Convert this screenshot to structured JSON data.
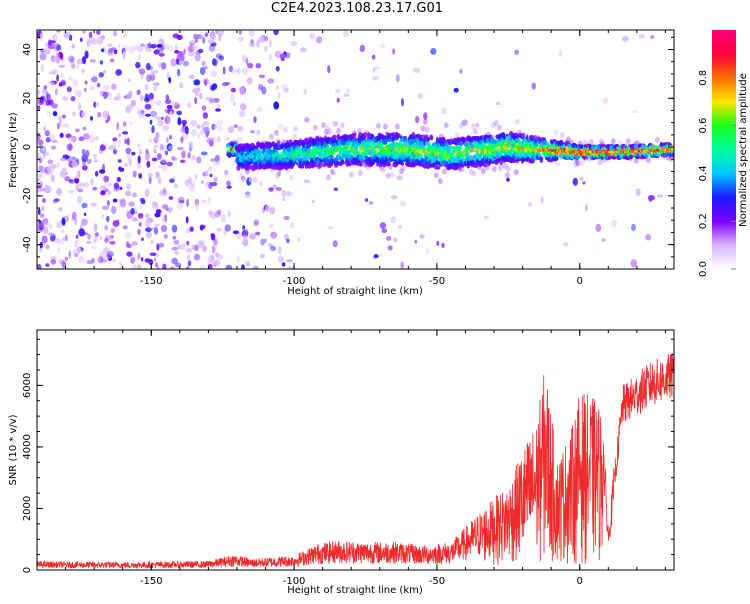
{
  "title": "C2E4.2023.108.23.17.G01",
  "colors": {
    "snr_line": "#ee2a2a",
    "spectrogram_main": "#7a10e8",
    "colormap": [
      "#ffffff",
      "#d9b3ff",
      "#7b00ff",
      "#1a1aff",
      "#00c8ff",
      "#00ff9a",
      "#19ff19",
      "#ffe600",
      "#ff6e00",
      "#ff003c",
      "#ff007f"
    ]
  },
  "chart_data": [
    {
      "type": "heatmap",
      "xlabel": "Height of straight line (km)",
      "ylabel": "Frequency (Hz)",
      "xlim": [
        -190,
        33
      ],
      "ylim": [
        -50,
        48
      ],
      "xticks": [
        -150,
        -100,
        -50,
        0
      ],
      "yticks": [
        -40,
        -20,
        0,
        20,
        40
      ],
      "colorbar": {
        "label": "Normalized spectral amplitude",
        "range": [
          0,
          1
        ],
        "ticks": [
          0.0,
          0.2,
          0.4,
          0.6,
          0.8
        ]
      },
      "features": {
        "noise_region_x": [
          -190,
          -100
        ],
        "signal_onset_x": -123,
        "signal_center_frequency": -2,
        "signal_track": [
          {
            "x": -120,
            "freq": -4,
            "width": 8,
            "amp": 0.25
          },
          {
            "x": -100,
            "freq": -3,
            "width": 9,
            "amp": 0.35
          },
          {
            "x": -80,
            "freq": -1,
            "width": 10,
            "amp": 0.4
          },
          {
            "x": -60,
            "freq": -1,
            "width": 11,
            "amp": 0.45
          },
          {
            "x": -45,
            "freq": -3,
            "width": 10,
            "amp": 0.45
          },
          {
            "x": -25,
            "freq": 0,
            "width": 10,
            "amp": 0.5
          },
          {
            "x": -15,
            "freq": -1,
            "width": 8,
            "amp": 0.5
          },
          {
            "x": 0,
            "freq": -2,
            "width": 4,
            "amp": 0.9
          },
          {
            "x": 15,
            "freq": -2,
            "width": 4,
            "amp": 0.9
          },
          {
            "x": 33,
            "freq": -1,
            "width": 4,
            "amp": 0.6
          }
        ]
      }
    },
    {
      "type": "line",
      "xlabel": "Height of straight line (km)",
      "ylabel": "SNR (10 * v/v)",
      "xlim": [
        -190,
        33
      ],
      "ylim": [
        0,
        7800
      ],
      "xticks": [
        -150,
        -100,
        -50,
        0
      ],
      "yticks": [
        0,
        2000,
        4000,
        6000
      ],
      "series": [
        {
          "x": [
            -190,
            -160,
            -130,
            -121,
            -115,
            -100,
            -92,
            -85,
            -75,
            -65,
            -55,
            -45,
            -38,
            -30,
            -25,
            -20,
            -15,
            -12,
            -8,
            -3,
            0,
            5,
            8,
            10,
            15,
            20,
            25,
            33
          ],
          "y": [
            250,
            230,
            260,
            450,
            320,
            420,
            750,
            850,
            800,
            820,
            700,
            800,
            1400,
            2100,
            2500,
            3600,
            4500,
            6300,
            3300,
            4200,
            5400,
            5200,
            4800,
            1200,
            6000,
            6400,
            6800,
            7100
          ]
        }
      ]
    }
  ]
}
